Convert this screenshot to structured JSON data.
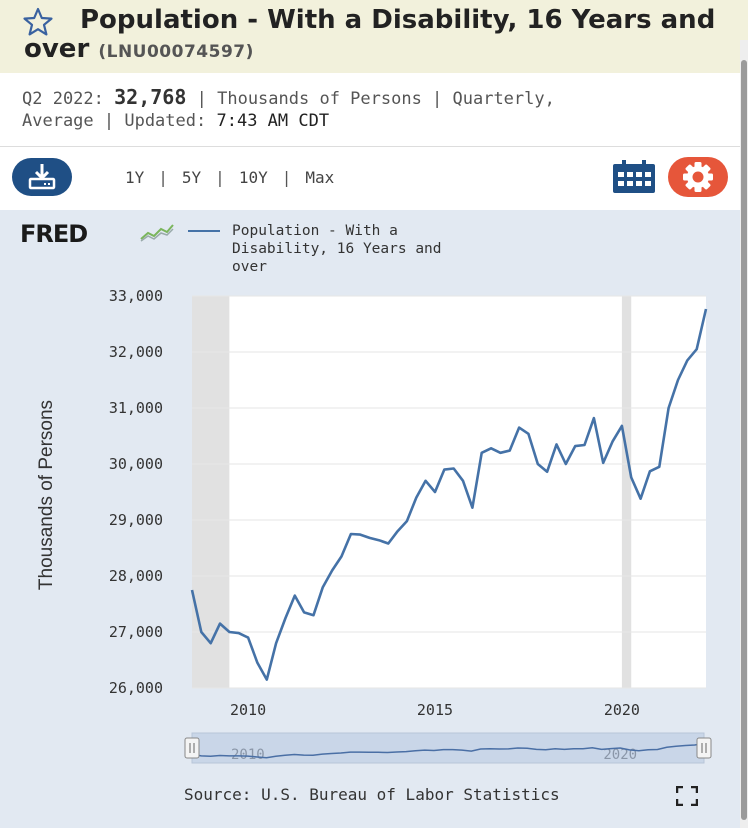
{
  "header": {
    "title": "Population - With a Disability, 16 Years and over",
    "series_id": "(LNU00074597)"
  },
  "meta": {
    "period": "Q2 2022:",
    "value": "32,768",
    "line1_rest": "| Thousands of Persons | Quarterly,",
    "line2": "Average | Updated:",
    "updated": "7:43 AM CDT"
  },
  "toolbar": {
    "ranges": [
      "1Y",
      "5Y",
      "10Y",
      "Max"
    ],
    "icons": {
      "download": "download-icon",
      "calendar": "calendar-icon",
      "settings": "gear-icon"
    }
  },
  "colors": {
    "line": "#4572a7",
    "header_bg": "#f2f1dc",
    "chart_bg": "#e2e9f2",
    "download_btn": "#1f4f85",
    "gear_btn": "#e6563a",
    "recession": "#e1e1e1"
  },
  "logo": "FRED",
  "source": "Source: U.S. Bureau of Labor Statistics",
  "chart_data": {
    "type": "line",
    "title": "",
    "ylabel": "Thousands of Persons",
    "xlabel": "",
    "ylim": [
      26000,
      33000
    ],
    "xlim": [
      2008.5,
      2022.25
    ],
    "yticks": [
      "26,000",
      "27,000",
      "28,000",
      "29,000",
      "30,000",
      "31,000",
      "32,000",
      "33,000"
    ],
    "ytick_values": [
      26000,
      27000,
      28000,
      29000,
      30000,
      31000,
      32000,
      33000
    ],
    "xticks": [
      "2010",
      "2015",
      "2020"
    ],
    "xtick_values": [
      2010,
      2015,
      2020
    ],
    "grid": true,
    "legend": "top",
    "recessions": [
      [
        2008.5,
        2009.5
      ],
      [
        2020.0,
        2020.25
      ]
    ],
    "navigator_labels": [
      "2010",
      "2020"
    ],
    "series": [
      {
        "name": "Population - With a Disability, 16 Years and over",
        "x": [
          2008.5,
          2008.75,
          2009.0,
          2009.25,
          2009.5,
          2009.75,
          2010.0,
          2010.25,
          2010.5,
          2010.75,
          2011.0,
          2011.25,
          2011.5,
          2011.75,
          2012.0,
          2012.25,
          2012.5,
          2012.75,
          2013.0,
          2013.25,
          2013.5,
          2013.75,
          2014.0,
          2014.25,
          2014.5,
          2014.75,
          2015.0,
          2015.25,
          2015.5,
          2015.75,
          2016.0,
          2016.25,
          2016.5,
          2016.75,
          2017.0,
          2017.25,
          2017.5,
          2017.75,
          2018.0,
          2018.25,
          2018.5,
          2018.75,
          2019.0,
          2019.25,
          2019.5,
          2019.75,
          2020.0,
          2020.25,
          2020.5,
          2020.75,
          2021.0,
          2021.25,
          2021.5,
          2021.75,
          2022.0,
          2022.25
        ],
        "values": [
          27750,
          27000,
          26800,
          27150,
          27000,
          26980,
          26900,
          26450,
          26150,
          26800,
          27250,
          27650,
          27350,
          27300,
          27800,
          28100,
          28350,
          28750,
          28740,
          28680,
          28640,
          28580,
          28800,
          28980,
          29400,
          29700,
          29500,
          29900,
          29920,
          29700,
          29220,
          30200,
          30280,
          30200,
          30240,
          30650,
          30540,
          30000,
          29860,
          30350,
          30000,
          30320,
          30340,
          30820,
          30020,
          30400,
          30680,
          29760,
          29380,
          29870,
          29950,
          31000,
          31500,
          31850,
          32050,
          32768
        ]
      }
    ]
  }
}
